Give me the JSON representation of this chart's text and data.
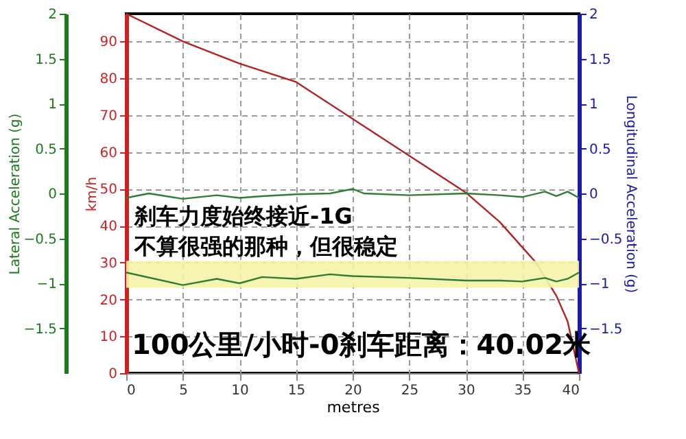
{
  "chart_data": {
    "type": "line",
    "xlabel": "metres",
    "ylabel": "km/h",
    "y2label": "Longitudinal Acceleration (g)",
    "y3label": "Lateral Acceleration (g)",
    "xlim": [
      0,
      40
    ],
    "xticks": [
      0,
      5,
      10,
      15,
      20,
      25,
      30,
      35,
      40
    ],
    "ylim": [
      0,
      97.5
    ],
    "yticks": [
      0,
      10,
      20,
      30,
      40,
      50,
      60,
      70,
      80,
      90
    ],
    "y2lim": [
      -2,
      2
    ],
    "y2ticks": [
      -1.5,
      -1,
      -0.5,
      0,
      0.5,
      1,
      1.5,
      2
    ],
    "y3lim": [
      -2,
      2
    ],
    "y3ticks": [
      -1.5,
      -1,
      -0.5,
      0,
      0.5,
      1,
      1.5,
      2
    ],
    "grid": true,
    "series": [
      {
        "color": "#b22222",
        "axis": "y",
        "x": [
          0,
          5,
          10,
          15,
          20,
          25,
          30,
          33,
          36.2,
          38,
          39,
          40
        ],
        "values": [
          97.5,
          90,
          84,
          79,
          69,
          59,
          49,
          41,
          30,
          21,
          14,
          0
        ]
      },
      {
        "color": "#2e7d32",
        "axis": "y3",
        "x": [
          0,
          2,
          5,
          8,
          10,
          12,
          15,
          18,
          20,
          21,
          25,
          30,
          33,
          35,
          37,
          38,
          39,
          40
        ],
        "values": [
          -0.05,
          0.0,
          -0.06,
          -0.02,
          -0.05,
          -0.03,
          -0.01,
          0.0,
          0.05,
          0.0,
          -0.02,
          0.0,
          -0.02,
          -0.04,
          0.02,
          -0.03,
          0.02,
          -0.05
        ]
      },
      {
        "color": "#2e7d32",
        "axis": "y2",
        "x": [
          0,
          5,
          8,
          10,
          12,
          15,
          18,
          20,
          25,
          30,
          33,
          35,
          37,
          38,
          39,
          40
        ],
        "values": [
          -0.88,
          -1.02,
          -0.95,
          -1.0,
          -0.93,
          -0.95,
          -0.9,
          -0.92,
          -0.94,
          -0.97,
          -0.97,
          -0.98,
          -0.94,
          -0.98,
          -0.95,
          -0.88
        ]
      }
    ],
    "bands": [
      {
        "axis": "y2",
        "from": -0.75,
        "to": -1.05,
        "color": "#f4f4a8"
      }
    ],
    "annotations": [
      "刹车力度始终接近-1G",
      "不算很强的那种，但很稳定",
      "100公里/小时-0刹车距离：40.02米"
    ]
  }
}
